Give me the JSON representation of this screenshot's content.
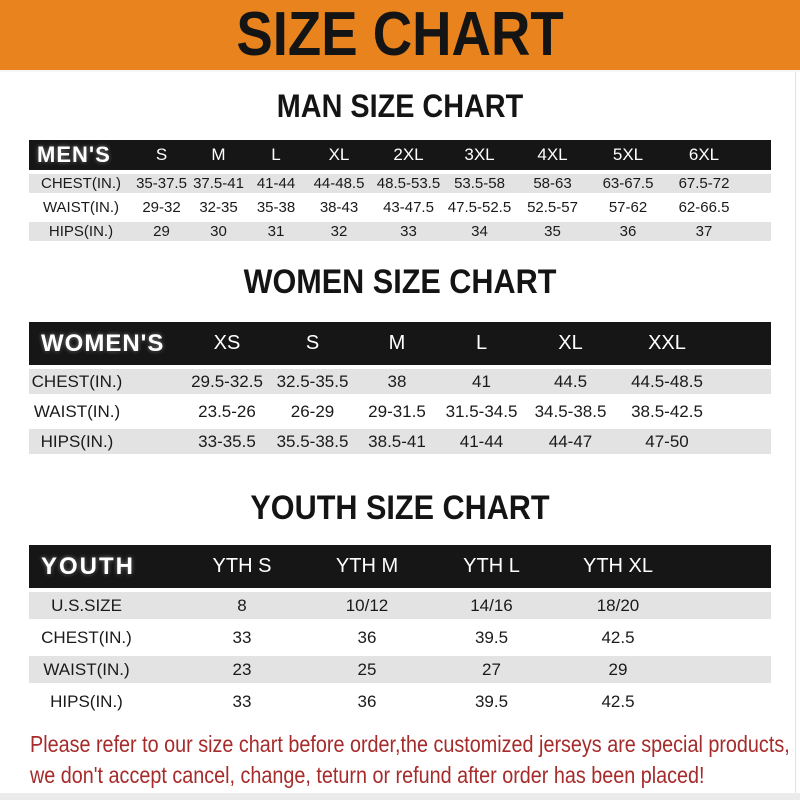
{
  "banner": {
    "title": "SIZE CHART"
  },
  "sections": [
    {
      "heading": "MAN SIZE CHART",
      "table_label": "MEN'S",
      "sizes": [
        "S",
        "M",
        "L",
        "XL",
        "2XL",
        "3XL",
        "4XL",
        "5XL",
        "6XL"
      ],
      "rows": [
        {
          "label": "CHEST(IN.)",
          "values": [
            "35-37.5",
            "37.5-41",
            "41-44",
            "44-48.5",
            "48.5-53.5",
            "53.5-58",
            "58-63",
            "63-67.5",
            "67.5-72"
          ]
        },
        {
          "label": "WAIST(IN.)",
          "values": [
            "29-32",
            "32-35",
            "35-38",
            "38-43",
            "43-47.5",
            "47.5-52.5",
            "52.5-57",
            "57-62",
            "62-66.5"
          ]
        },
        {
          "label": "HIPS(IN.)",
          "values": [
            "29",
            "30",
            "31",
            "32",
            "33",
            "34",
            "35",
            "36",
            "37"
          ]
        }
      ]
    },
    {
      "heading": "WOMEN SIZE CHART",
      "table_label": "WOMEN'S",
      "sizes": [
        "XS",
        "S",
        "M",
        "L",
        "XL",
        "XXL"
      ],
      "rows": [
        {
          "label": "CHEST(IN.)",
          "values": [
            "29.5-32.5",
            "32.5-35.5",
            "38",
            "41",
            "44.5",
            "44.5-48.5"
          ]
        },
        {
          "label": "WAIST(IN.)",
          "values": [
            "23.5-26",
            "26-29",
            "29-31.5",
            "31.5-34.5",
            "34.5-38.5",
            "38.5-42.5"
          ]
        },
        {
          "label": "HIPS(IN.)",
          "values": [
            "33-35.5",
            "35.5-38.5",
            "38.5-41",
            "41-44",
            "44-47",
            "47-50"
          ]
        }
      ]
    },
    {
      "heading": "YOUTH SIZE CHART",
      "table_label": "YOUTH",
      "sizes": [
        "YTH S",
        "YTH M",
        "YTH L",
        "YTH XL"
      ],
      "rows": [
        {
          "label": "U.S.SIZE",
          "values": [
            "8",
            "10/12",
            "14/16",
            "18/20"
          ]
        },
        {
          "label": "CHEST(IN.)",
          "values": [
            "33",
            "36",
            "39.5",
            "42.5"
          ]
        },
        {
          "label": "WAIST(IN.)",
          "values": [
            "23",
            "25",
            "27",
            "29"
          ]
        },
        {
          "label": "HIPS(IN.)",
          "values": [
            "33",
            "36",
            "39.5",
            "42.5"
          ]
        }
      ]
    }
  ],
  "footer": {
    "line1": "Please refer to our size chart before order,the customized jerseys are special products,",
    "line2": "we don't accept cancel, change, teturn or refund after order has been placed!"
  },
  "colors": {
    "banner_bg": "#E8831E",
    "header_bg": "#161616",
    "row_alt_bg": "#E3E3E3",
    "notice_text": "#A62B2B"
  }
}
